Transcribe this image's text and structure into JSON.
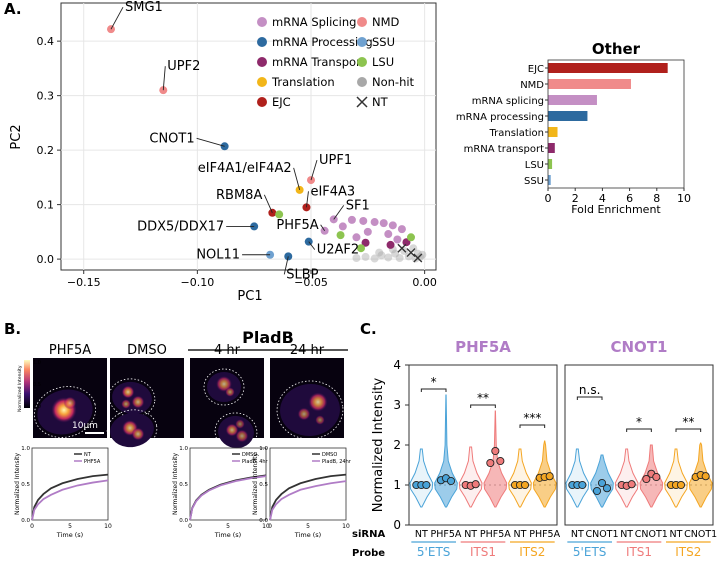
{
  "panels": {
    "A": "A.",
    "B": "B.",
    "C": "C."
  },
  "colors": {
    "mRNA Splicing": "#c48fc4",
    "mRNA Processing": "#2d6a9f",
    "mRNA Transport": "#8e2a6b",
    "Translation": "#f2b619",
    "EJC": "#b0201c",
    "NMD": "#f08a8a",
    "SSU": "#6fa1d0",
    "LSU": "#8dc450",
    "Non-hit": "#a8a8a8",
    "NT": "#333333",
    "ets": "#4aa3d8",
    "its1": "#ef7b7b",
    "its2": "#f4a623"
  },
  "chart_data": [
    {
      "type": "scatter",
      "xlabel": "PC1",
      "ylabel": "PC2",
      "xlim": [
        -0.16,
        0.005
      ],
      "ylim": [
        -0.02,
        0.47
      ],
      "xticks": [
        -0.15,
        -0.1,
        -0.05,
        0.0
      ],
      "xtick_labels": [
        "−0.15",
        "−0.10",
        "−0.05",
        "0.00"
      ],
      "yticks": [
        0.0,
        0.1,
        0.2,
        0.3,
        0.4
      ],
      "ytick_labels": [
        "0.0",
        "0.1",
        "0.2",
        "0.3",
        "0.4"
      ],
      "grid": true,
      "legend": [
        "mRNA Splicing",
        "mRNA Processing",
        "mRNA Transport",
        "Translation",
        "EJC",
        "NMD",
        "SSU",
        "LSU",
        "Non-hit",
        "NT"
      ],
      "legend_position": "top-right",
      "points": [
        {
          "label": "SMG1",
          "category": "NMD",
          "x": -0.138,
          "y": 0.422
        },
        {
          "label": "UPF2",
          "category": "NMD",
          "x": -0.115,
          "y": 0.31
        },
        {
          "label": "CNOT1",
          "category": "mRNA Processing",
          "x": -0.088,
          "y": 0.207
        },
        {
          "label": "UPF1",
          "category": "NMD",
          "x": -0.05,
          "y": 0.145
        },
        {
          "label": "eIF4A1/eIF4A2",
          "category": "Translation",
          "x": -0.055,
          "y": 0.127
        },
        {
          "label": "eIF4A3",
          "category": "EJC",
          "x": -0.052,
          "y": 0.095
        },
        {
          "label": "RBM8A",
          "category": "EJC",
          "x": -0.067,
          "y": 0.085
        },
        {
          "label": "",
          "category": "LSU",
          "x": -0.064,
          "y": 0.082
        },
        {
          "label": "SF1",
          "category": "mRNA Splicing",
          "x": -0.04,
          "y": 0.073
        },
        {
          "label": "PHF5A",
          "category": "mRNA Splicing",
          "x": -0.044,
          "y": 0.052
        },
        {
          "label": "DDX5/DDX17",
          "category": "mRNA Processing",
          "x": -0.075,
          "y": 0.06
        },
        {
          "label": "U2AF2",
          "category": "mRNA Processing",
          "x": -0.051,
          "y": 0.032
        },
        {
          "label": "NOL11",
          "category": "SSU",
          "x": -0.068,
          "y": 0.008
        },
        {
          "label": "SLBP",
          "category": "mRNA Processing",
          "x": -0.06,
          "y": 0.005
        },
        {
          "label": "",
          "category": "mRNA Splicing",
          "x": -0.032,
          "y": 0.072
        },
        {
          "label": "",
          "category": "mRNA Splicing",
          "x": -0.027,
          "y": 0.07
        },
        {
          "label": "",
          "category": "mRNA Splicing",
          "x": -0.022,
          "y": 0.068
        },
        {
          "label": "",
          "category": "mRNA Splicing",
          "x": -0.018,
          "y": 0.066
        },
        {
          "label": "",
          "category": "mRNA Splicing",
          "x": -0.014,
          "y": 0.062
        },
        {
          "label": "",
          "category": "mRNA Splicing",
          "x": -0.01,
          "y": 0.055
        },
        {
          "label": "",
          "category": "mRNA Splicing",
          "x": -0.036,
          "y": 0.06
        },
        {
          "label": "",
          "category": "mRNA Splicing",
          "x": -0.025,
          "y": 0.05
        },
        {
          "label": "",
          "category": "mRNA Splicing",
          "x": -0.016,
          "y": 0.046
        },
        {
          "label": "",
          "category": "mRNA Splicing",
          "x": -0.03,
          "y": 0.04
        },
        {
          "label": "",
          "category": "mRNA Splicing",
          "x": -0.012,
          "y": 0.036
        },
        {
          "label": "",
          "category": "mRNA Transport",
          "x": -0.026,
          "y": 0.03
        },
        {
          "label": "",
          "category": "mRNA Transport",
          "x": -0.015,
          "y": 0.026
        },
        {
          "label": "",
          "category": "mRNA Transport",
          "x": -0.008,
          "y": 0.031
        },
        {
          "label": "",
          "category": "LSU",
          "x": -0.037,
          "y": 0.044
        },
        {
          "label": "",
          "category": "LSU",
          "x": -0.028,
          "y": 0.02
        },
        {
          "label": "",
          "category": "LSU",
          "x": -0.006,
          "y": 0.04
        },
        {
          "label": "",
          "category": "Non-hit",
          "x": -0.03,
          "y": 0.002
        },
        {
          "label": "",
          "category": "Non-hit",
          "x": -0.026,
          "y": 0.004
        },
        {
          "label": "",
          "category": "Non-hit",
          "x": -0.022,
          "y": 0.001
        },
        {
          "label": "",
          "category": "Non-hit",
          "x": -0.019,
          "y": 0.007
        },
        {
          "label": "",
          "category": "Non-hit",
          "x": -0.016,
          "y": 0.003
        },
        {
          "label": "",
          "category": "Non-hit",
          "x": -0.013,
          "y": 0.01
        },
        {
          "label": "",
          "category": "Non-hit",
          "x": -0.011,
          "y": 0.002
        },
        {
          "label": "",
          "category": "Non-hit",
          "x": -0.009,
          "y": 0.015
        },
        {
          "label": "",
          "category": "Non-hit",
          "x": -0.007,
          "y": 0.005
        },
        {
          "label": "",
          "category": "Non-hit",
          "x": -0.005,
          "y": 0.02
        },
        {
          "label": "",
          "category": "Non-hit",
          "x": -0.004,
          "y": 0.001
        },
        {
          "label": "",
          "category": "Non-hit",
          "x": -0.003,
          "y": 0.01
        },
        {
          "label": "",
          "category": "Non-hit",
          "x": -0.002,
          "y": 0.004
        },
        {
          "label": "",
          "category": "Non-hit",
          "x": -0.001,
          "y": 0.008
        },
        {
          "label": "",
          "category": "Non-hit",
          "x": -0.014,
          "y": 0.018
        },
        {
          "label": "",
          "category": "Non-hit",
          "x": -0.02,
          "y": 0.012
        },
        {
          "label": "",
          "category": "NT",
          "x": -0.01,
          "y": 0.02
        },
        {
          "label": "",
          "category": "NT",
          "x": -0.006,
          "y": 0.012
        },
        {
          "label": "",
          "category": "NT",
          "x": -0.003,
          "y": 0.002
        }
      ]
    },
    {
      "type": "bar",
      "orientation": "horizontal",
      "title": "Other",
      "xlabel": "Fold Enrichment",
      "xlim": [
        0,
        10
      ],
      "xticks": [
        0,
        2,
        4,
        6,
        8,
        10
      ],
      "categories": [
        "EJC",
        "NMD",
        "mRNA splicing",
        "mRNA processing",
        "Translation",
        "mRNA transport",
        "LSU",
        "SSU"
      ],
      "values": [
        8.8,
        6.1,
        3.6,
        2.9,
        0.7,
        0.5,
        0.3,
        0.2
      ],
      "bar_colors": [
        "#b0201c",
        "#f08a8a",
        "#c48fc4",
        "#2d6a9f",
        "#f2b619",
        "#8e2a6b",
        "#8dc450",
        "#6fa1d0"
      ]
    },
    {
      "type": "line",
      "panel": "B-left",
      "xlabel": "Time (s)",
      "ylabel": "Normalized Intensity",
      "xlim": [
        0,
        10
      ],
      "ylim": [
        0,
        1
      ],
      "xticks": [
        0,
        5,
        10
      ],
      "yticks": [
        0,
        0.5,
        1.0
      ],
      "legend": [
        "NT",
        "PHF5A"
      ],
      "series": [
        {
          "name": "NT",
          "color": "#333333",
          "x": [
            0,
            0.3,
            0.8,
            1.5,
            2.5,
            4,
            6,
            8,
            10
          ],
          "y": [
            0,
            0.18,
            0.28,
            0.36,
            0.44,
            0.51,
            0.57,
            0.61,
            0.63
          ]
        },
        {
          "name": "PHF5A",
          "color": "#b07cc6",
          "x": [
            0,
            0.3,
            0.8,
            1.5,
            2.5,
            4,
            6,
            8,
            10
          ],
          "y": [
            0,
            0.14,
            0.22,
            0.29,
            0.35,
            0.42,
            0.48,
            0.52,
            0.55
          ]
        }
      ]
    },
    {
      "type": "line",
      "panel": "B-mid",
      "xlabel": "Time (s)",
      "ylabel": "Normalized Intensity",
      "xlim": [
        0,
        10
      ],
      "ylim": [
        0,
        1
      ],
      "xticks": [
        0,
        5,
        10
      ],
      "yticks": [
        0,
        0.5,
        1.0
      ],
      "legend": [
        "DMSO",
        "PladB, 4hr"
      ],
      "series": [
        {
          "name": "DMSO",
          "color": "#333333",
          "x": [
            0,
            0.3,
            0.8,
            1.5,
            2.5,
            4,
            6,
            8,
            10
          ],
          "y": [
            0,
            0.17,
            0.27,
            0.35,
            0.42,
            0.49,
            0.55,
            0.59,
            0.62
          ]
        },
        {
          "name": "PladB, 4hr",
          "color": "#b07cc6",
          "x": [
            0,
            0.3,
            0.8,
            1.5,
            2.5,
            4,
            6,
            8,
            10
          ],
          "y": [
            0,
            0.16,
            0.26,
            0.34,
            0.41,
            0.48,
            0.54,
            0.58,
            0.61
          ]
        }
      ]
    },
    {
      "type": "line",
      "panel": "B-right",
      "xlabel": "Time (s)",
      "ylabel": "Normalized Intensity",
      "xlim": [
        0,
        10
      ],
      "ylim": [
        0,
        1
      ],
      "xticks": [
        0,
        5,
        10
      ],
      "yticks": [
        0,
        0.5,
        1.0
      ],
      "legend": [
        "DMSO",
        "PladB, 24hr"
      ],
      "series": [
        {
          "name": "DMSO",
          "color": "#333333",
          "x": [
            0,
            0.3,
            0.8,
            1.5,
            2.5,
            4,
            6,
            8,
            10
          ],
          "y": [
            0,
            0.18,
            0.28,
            0.36,
            0.44,
            0.51,
            0.57,
            0.61,
            0.63
          ]
        },
        {
          "name": "PladB, 24hr",
          "color": "#b07cc6",
          "x": [
            0,
            0.3,
            0.8,
            1.5,
            2.5,
            4,
            6,
            8,
            10
          ],
          "y": [
            0,
            0.14,
            0.22,
            0.29,
            0.35,
            0.42,
            0.47,
            0.51,
            0.54
          ]
        }
      ]
    },
    {
      "type": "violin",
      "panel": "C-PHF5A",
      "title": "PHF5A",
      "ylabel": "Normalized Intensity",
      "ylim": [
        0,
        4
      ],
      "yticks": [
        0,
        1,
        2,
        3,
        4
      ],
      "groups": [
        {
          "probe": "5'ETS",
          "siRNA": "NT",
          "color": "#4aa3d8",
          "points": [
            1.0,
            1.0,
            1.0
          ],
          "ymax": 1.9
        },
        {
          "probe": "5'ETS",
          "siRNA": "PHF5A",
          "color": "#4aa3d8",
          "points": [
            1.12,
            1.17,
            1.1
          ],
          "ymax": 3.25
        },
        {
          "probe": "ITS1",
          "siRNA": "NT",
          "color": "#ef7b7b",
          "points": [
            1.0,
            0.98,
            1.02
          ],
          "ymax": 1.95
        },
        {
          "probe": "ITS1",
          "siRNA": "PHF5A",
          "color": "#ef7b7b",
          "points": [
            1.55,
            1.85,
            1.6
          ],
          "ymax": 2.85
        },
        {
          "probe": "ITS2",
          "siRNA": "NT",
          "color": "#f4a623",
          "points": [
            1.0,
            1.0,
            1.0
          ],
          "ymax": 1.9
        },
        {
          "probe": "ITS2",
          "siRNA": "PHF5A",
          "color": "#f4a623",
          "points": [
            1.18,
            1.2,
            1.22
          ],
          "ymax": 2.1
        }
      ],
      "significance": [
        "*",
        "**",
        "***"
      ]
    },
    {
      "type": "violin",
      "panel": "C-CNOT1",
      "title": "CNOT1",
      "ylim": [
        0,
        4
      ],
      "groups": [
        {
          "probe": "5'ETS",
          "siRNA": "NT",
          "color": "#4aa3d8",
          "points": [
            1.0,
            1.0,
            1.0
          ],
          "ymax": 1.9
        },
        {
          "probe": "5'ETS",
          "siRNA": "CNOT1",
          "color": "#4aa3d8",
          "points": [
            0.85,
            1.05,
            0.92
          ],
          "ymax": 1.75
        },
        {
          "probe": "ITS1",
          "siRNA": "NT",
          "color": "#ef7b7b",
          "points": [
            1.0,
            0.98,
            1.02
          ],
          "ymax": 1.9
        },
        {
          "probe": "ITS1",
          "siRNA": "CNOT1",
          "color": "#ef7b7b",
          "points": [
            1.15,
            1.28,
            1.2
          ],
          "ymax": 2.0
        },
        {
          "probe": "ITS2",
          "siRNA": "NT",
          "color": "#f4a623",
          "points": [
            1.0,
            1.0,
            1.0
          ],
          "ymax": 1.9
        },
        {
          "probe": "ITS2",
          "siRNA": "CNOT1",
          "color": "#f4a623",
          "points": [
            1.2,
            1.25,
            1.22
          ],
          "ymax": 2.05
        }
      ],
      "significance": [
        "n.s.",
        "*",
        "**"
      ]
    }
  ],
  "panelB": {
    "pladb_header": "PladB",
    "labels": [
      "PHF5A",
      "DMSO",
      "4 hr",
      "24 hr"
    ],
    "scalebar": "10μm",
    "colorbar_label": "Normalized Intensity",
    "colorbar_ticks": [
      "1.0",
      "0.5",
      "0.0"
    ]
  },
  "panelC": {
    "row_labels": [
      "siRNA",
      "Probe"
    ],
    "probes": [
      "5'ETS",
      "ITS1",
      "ITS2"
    ]
  }
}
